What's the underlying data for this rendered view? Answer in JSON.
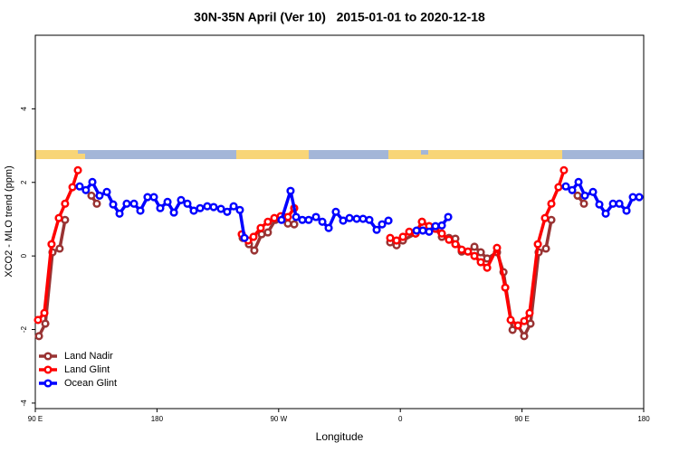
{
  "chart_data": {
    "type": "line",
    "title": "30N-35N April (Ver 10)   2015-01-01 to 2020-12-18",
    "x_label": "Longitude",
    "y_label": "XCO2 - MLO trend (ppm)",
    "xlim": [
      90,
      540
    ],
    "ylim": [
      -4.15,
      6
    ],
    "xticks": [
      {
        "value": 90,
        "label": "90 E"
      },
      180,
      {
        "value": 270,
        "label": "90 W"
      },
      {
        "value": 360,
        "label": "0"
      },
      {
        "value": 450,
        "label": "90 E"
      },
      {
        "value": 540,
        "label": "180"
      }
    ],
    "yticks": [
      -4,
      -2,
      0,
      2,
      4
    ],
    "legend": "bottom-left",
    "series": [
      {
        "name": "Land Nadir",
        "color": "#993333",
        "x": [
          92.7,
          97.4,
          102.7,
          108,
          112,
          null,
          131.5,
          135.5,
          null,
          243.4,
          248,
          252,
          257.4,
          262,
          267.5,
          272.8,
          276.8,
          281.5,
          null,
          352.5,
          357.2,
          361.9,
          371.3,
          376,
          381.3,
          386,
          390.7,
          396,
          400.7,
          405.4,
          410,
          414.8,
          419.5,
          424.2,
          431.5,
          436.3,
          443,
          447,
          451.6,
          456.3,
          462.3,
          467.7,
          471.7,
          null,
          491.1,
          495.8
        ],
        "values": [
          -2.18,
          -1.84,
          0.1,
          0.2,
          0.98,
          null,
          1.64,
          1.42,
          null,
          0.49,
          0.32,
          0.15,
          0.59,
          0.64,
          0.98,
          1.08,
          0.88,
          0.86,
          null,
          0.37,
          0.29,
          0.42,
          0.61,
          0.93,
          0.81,
          0.74,
          0.52,
          0.49,
          0.47,
          0.12,
          0.12,
          0.25,
          0.1,
          -0.07,
          0.1,
          -0.44,
          -2.01,
          -1.89,
          -2.18,
          -1.84,
          0.1,
          0.2,
          0.98,
          null,
          1.64,
          1.42
        ]
      },
      {
        "name": "Land Glint",
        "color": "#ff0000",
        "x": [
          92,
          96.7,
          102,
          107.4,
          112,
          117.5,
          121.5,
          null,
          242.7,
          247.4,
          251.4,
          256.7,
          262,
          266.8,
          271.5,
          276.8,
          281.5,
          null,
          352.5,
          357.2,
          361.9,
          366.6,
          371.3,
          376,
          381.3,
          386,
          390.7,
          396,
          400.7,
          405.4,
          410,
          414.8,
          419.5,
          424.2,
          431.5,
          437.6,
          441.6,
          447,
          451.6,
          455.6,
          461.7,
          467,
          471.7,
          477,
          481
        ],
        "values": [
          -1.74,
          -1.55,
          0.32,
          1.03,
          1.42,
          1.87,
          2.33,
          null,
          0.59,
          0.42,
          0.52,
          0.76,
          0.93,
          1.03,
          1.08,
          1.06,
          1.3,
          null,
          0.49,
          0.42,
          0.52,
          0.66,
          0.61,
          0.93,
          0.81,
          0.74,
          0.61,
          0.44,
          0.32,
          0.17,
          0.12,
          0,
          -0.17,
          -0.32,
          0.22,
          -0.86,
          -1.74,
          -1.89,
          -1.77,
          -1.55,
          0.32,
          1.03,
          1.42,
          1.87,
          2.33
        ]
      },
      {
        "name": "Ocean Glint",
        "color": "#0000ff",
        "x": [
          122.8,
          127.4,
          132.2,
          137.5,
          142.9,
          147.6,
          152.3,
          157.6,
          163,
          167.7,
          173,
          177.7,
          182.4,
          187.8,
          192.5,
          197.8,
          202.5,
          207.2,
          211.9,
          217.2,
          221.9,
          227.3,
          231.9,
          236.7,
          241.3,
          244.7,
          null,
          272.1,
          278.8,
          282.9,
          287.5,
          292.2,
          297.6,
          302.3,
          307,
          312.3,
          317.7,
          322.4,
          327.7,
          332.4,
          337.1,
          342.5,
          346.5,
          351.2,
          null,
          372,
          376.6,
          381.3,
          386,
          390.7,
          395.4,
          null,
          482.4,
          487.1,
          491.8,
          496.5,
          502.5,
          507.2,
          511.9,
          517.3,
          522,
          527.3,
          532,
          536.7
        ],
        "values": [
          1.89,
          1.79,
          2.01,
          1.64,
          1.74,
          1.4,
          1.15,
          1.42,
          1.42,
          1.23,
          1.6,
          1.6,
          1.3,
          1.47,
          1.18,
          1.52,
          1.42,
          1.23,
          1.3,
          1.35,
          1.33,
          1.28,
          1.2,
          1.35,
          1.25,
          0.49,
          null,
          0.98,
          1.77,
          1.06,
          0.98,
          0.98,
          1.06,
          0.93,
          0.76,
          1.2,
          0.96,
          1.03,
          1.01,
          1.01,
          0.98,
          0.71,
          0.86,
          0.96,
          null,
          0.69,
          0.69,
          0.66,
          0.81,
          0.83,
          1.06,
          null,
          1.89,
          1.79,
          2.01,
          1.64,
          1.74,
          1.4,
          1.15,
          1.42,
          1.42,
          1.23,
          1.6,
          1.6
        ]
      }
    ]
  }
}
